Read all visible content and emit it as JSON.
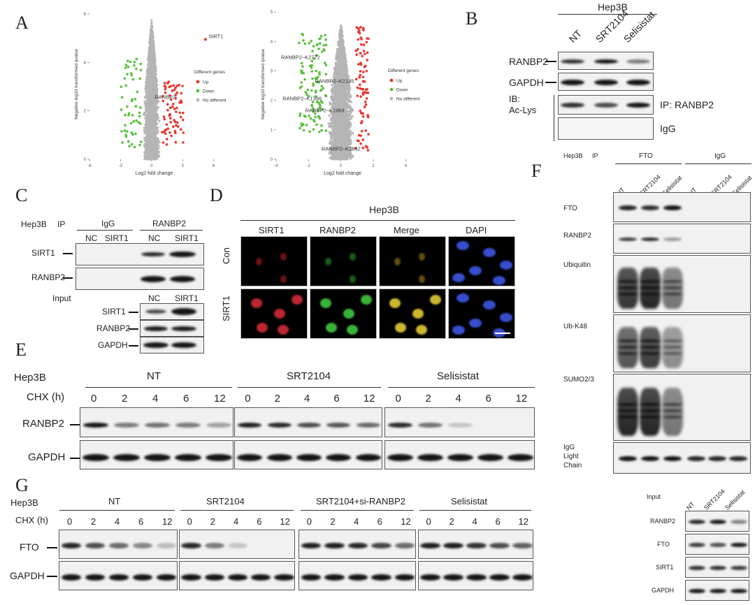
{
  "panels": {
    "A": "A",
    "B": "B",
    "C": "C",
    "D": "D",
    "E": "E",
    "F": "F",
    "G": "G"
  },
  "chart_data": [
    {
      "type": "scatter",
      "xlabel": "Log2 fold change",
      "ylabel": "Negative log10 transformed qvalue",
      "xticks": [
        "-6",
        "-3",
        "0",
        "3",
        "6"
      ],
      "yticks": [
        "0",
        "2",
        "4",
        "6"
      ],
      "xlim": [
        -6,
        6.5
      ],
      "ylim": [
        0,
        6.2
      ],
      "legend_title": "Different genes",
      "legend": [
        "Up",
        "Down",
        "No different"
      ],
      "colors": {
        "up": "#e8352e",
        "down": "#59c03c",
        "none": "#b5b5b5"
      },
      "annotations": [
        {
          "text": "SIRT1",
          "x": 5.5,
          "y": 5.0
        },
        {
          "text": "RANBP2",
          "x": 0.3,
          "y": 2.5
        }
      ]
    },
    {
      "type": "scatter",
      "xlabel": "Log2 fold change",
      "ylabel": "Negative log10 transformed qvalue",
      "xticks": [
        "-4",
        "-2",
        "0",
        "2",
        "4"
      ],
      "yticks": [
        "0",
        "1",
        "2",
        "3",
        "4",
        "5"
      ],
      "xlim": [
        -4,
        4.2
      ],
      "ylim": [
        0,
        5.1
      ],
      "legend_title": "Different genes",
      "legend": [
        "Up",
        "Down",
        "No different"
      ],
      "colors": {
        "up": "#e8352e",
        "down": "#59c03c",
        "none": "#b5b5b5"
      },
      "annotations": [
        {
          "text": "RANBP2–K2772",
          "x": -3.7,
          "y": 3.4
        },
        {
          "text": "RANBP2–K2185",
          "x": -1.6,
          "y": 2.6
        },
        {
          "text": "RANBP2–K1396",
          "x": -3.6,
          "y": 2.0
        },
        {
          "text": "RANBP2–K1963",
          "x": -2.2,
          "y": 1.6
        },
        {
          "text": "RANBP2–K1842",
          "x": -1.2,
          "y": 0.3
        }
      ]
    }
  ],
  "panelB": {
    "cell_line": "Hep3B",
    "lanes": [
      "NT",
      "SRT2104",
      "Selisistat"
    ],
    "rows": [
      "RANBP2",
      "GAPDH"
    ],
    "ib": "IB:",
    "ib2": "Ac-Lys",
    "ip": "IP: RANBP2",
    "igg": "IgG",
    "band_levels": {
      "RANBP2": [
        0.85,
        1.0,
        0.45
      ],
      "GAPDH": [
        1,
        1,
        1
      ],
      "IP": [
        0.85,
        0.7,
        1.0
      ],
      "IgG": [
        0,
        0,
        0
      ]
    }
  },
  "panelC": {
    "cell_line": "Hep3B",
    "ip": "IP",
    "igg": "IgG",
    "ranbp2": "RANBP2",
    "lanes": [
      "NC",
      "SIRT1",
      "NC",
      "SIRT1"
    ],
    "rows": [
      "SIRT1",
      "RANBP2"
    ],
    "input": "Input",
    "input_lanes": [
      "NC",
      "SIRT1"
    ],
    "input_rows": [
      "SIRT1",
      "RANBP2",
      "GAPDH"
    ]
  },
  "panelD": {
    "cell_line": "Hep3B",
    "cols": [
      "SIRT1",
      "RANBP2",
      "Merge",
      "DAPI"
    ],
    "rows": [
      "Con",
      "SIRT1"
    ]
  },
  "panelE": {
    "cell_line": "Hep3B",
    "groups": [
      "NT",
      "SRT2104",
      "Selisistat"
    ],
    "chx": "CHX (h)",
    "times": [
      "0",
      "2",
      "4",
      "6",
      "12"
    ],
    "rows": [
      "RANBP2",
      "GAPDH"
    ],
    "band_levels": {
      "NT": [
        1,
        0.45,
        0.5,
        0.45,
        0.25
      ],
      "SRT2104": [
        0.95,
        0.9,
        0.7,
        0.65,
        0.55
      ],
      "Selisistat": [
        0.9,
        0.5,
        0.05,
        0,
        0
      ]
    }
  },
  "panelF": {
    "cell_line": "Hep3B",
    "ip": "IP",
    "fto": "FTO",
    "igg": "IgG",
    "lanes": [
      "NT",
      "SRT2104",
      "Selisistat",
      "NT",
      "SRT2104",
      "Selisistat"
    ],
    "rows": [
      "FTO",
      "RANBP2",
      "Ubiquitin",
      "Ub-K48",
      "SUMO2/3"
    ],
    "igg_lc": [
      "IgG",
      "Light",
      "Chain"
    ],
    "input": "Input",
    "input_lanes": [
      "NT",
      "SRT2104",
      "Selisistat"
    ],
    "input_rows": [
      "RANBP2",
      "FTO",
      "SIRT1",
      "GAPDH"
    ]
  },
  "panelG": {
    "cell_line": "Hep3B",
    "groups": [
      "NT",
      "SRT2104",
      "SRT2104+si-RANBP2",
      "Selisistat"
    ],
    "chx": "CHX (h)",
    "times": [
      "0",
      "2",
      "4",
      "6",
      "12"
    ],
    "rows": [
      "FTO",
      "GAPDH"
    ],
    "band_levels": {
      "NT": [
        0.9,
        0.7,
        0.55,
        0.4,
        0.1
      ],
      "SRT2104": [
        0.9,
        0.45,
        0.05,
        0,
        0
      ],
      "SRT2104+si-RANBP2": [
        0.95,
        0.95,
        0.9,
        0.75,
        0.55
      ],
      "Selisistat": [
        0.95,
        0.95,
        0.85,
        0.7,
        0.6
      ]
    }
  }
}
